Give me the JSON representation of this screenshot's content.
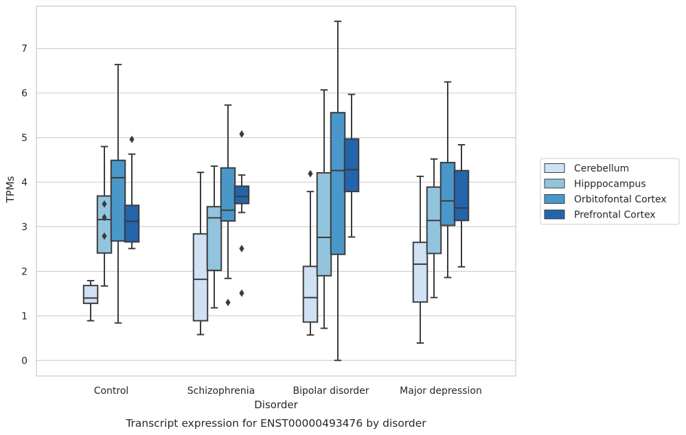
{
  "chart_data": {
    "type": "box",
    "title": "Transcript expression for ENST00000493476 by disorder",
    "xlabel": "Disorder",
    "ylabel": "TPMs",
    "ylim": [
      -0.35,
      7.95
    ],
    "yticks": [
      0,
      1,
      2,
      3,
      4,
      5,
      6,
      7
    ],
    "grid": "horizontal",
    "legend_position": "right",
    "categories": [
      "Control",
      "Schizophrenia",
      "Bipolar disorder",
      "Major depression"
    ],
    "series": [
      {
        "name": "Cerebellum",
        "color": "#cfe1f2",
        "boxes": [
          {
            "whislo": 0.89,
            "q1": 1.28,
            "med": 1.4,
            "q3": 1.68,
            "whishi": 1.79,
            "fliers": []
          },
          {
            "whislo": 0.58,
            "q1": 0.89,
            "med": 1.82,
            "q3": 2.84,
            "whishi": 4.22,
            "fliers": []
          },
          {
            "whislo": 0.57,
            "q1": 0.86,
            "med": 1.41,
            "q3": 2.11,
            "whishi": 3.79,
            "fliers": [
              4.19
            ]
          },
          {
            "whislo": 0.39,
            "q1": 1.31,
            "med": 2.16,
            "q3": 2.65,
            "whishi": 4.13,
            "fliers": []
          }
        ]
      },
      {
        "name": "Hipppocampus",
        "color": "#93c4de",
        "boxes": [
          {
            "whislo": 1.67,
            "q1": 2.41,
            "med": 3.16,
            "q3": 3.69,
            "whishi": 4.8,
            "fliers": [
              2.79,
              3.21,
              3.51
            ]
          },
          {
            "whislo": 1.18,
            "q1": 2.02,
            "med": 3.2,
            "q3": 3.45,
            "whishi": 4.36,
            "fliers": []
          },
          {
            "whislo": 0.72,
            "q1": 1.9,
            "med": 2.76,
            "q3": 4.21,
            "whishi": 6.07,
            "fliers": []
          },
          {
            "whislo": 1.41,
            "q1": 2.4,
            "med": 3.14,
            "q3": 3.89,
            "whishi": 4.52,
            "fliers": []
          }
        ]
      },
      {
        "name": "Orbitofontal Cortex",
        "color": "#4a98c9",
        "boxes": [
          {
            "whislo": 0.84,
            "q1": 2.68,
            "med": 4.1,
            "q3": 4.49,
            "whishi": 6.64,
            "fliers": []
          },
          {
            "whislo": 1.84,
            "q1": 3.13,
            "med": 3.37,
            "q3": 4.32,
            "whishi": 5.73,
            "fliers": [
              1.3
            ]
          },
          {
            "whislo": 0.0,
            "q1": 2.38,
            "med": 4.26,
            "q3": 5.56,
            "whishi": 7.61,
            "fliers": []
          },
          {
            "whislo": 1.86,
            "q1": 3.03,
            "med": 3.58,
            "q3": 4.44,
            "whishi": 6.25,
            "fliers": []
          }
        ]
      },
      {
        "name": "Prefrontal Cortex",
        "color": "#2464ab",
        "boxes": [
          {
            "whislo": 2.51,
            "q1": 2.66,
            "med": 3.12,
            "q3": 3.48,
            "whishi": 4.63,
            "fliers": [
              4.96
            ]
          },
          {
            "whislo": 3.32,
            "q1": 3.52,
            "med": 3.68,
            "q3": 3.91,
            "whishi": 4.16,
            "fliers": [
              1.51,
              2.51,
              5.08
            ]
          },
          {
            "whislo": 2.77,
            "q1": 3.79,
            "med": 4.28,
            "q3": 4.97,
            "whishi": 5.97,
            "fliers": []
          },
          {
            "whislo": 2.1,
            "q1": 3.14,
            "med": 3.42,
            "q3": 4.26,
            "whishi": 4.84,
            "fliers": []
          }
        ]
      }
    ]
  }
}
